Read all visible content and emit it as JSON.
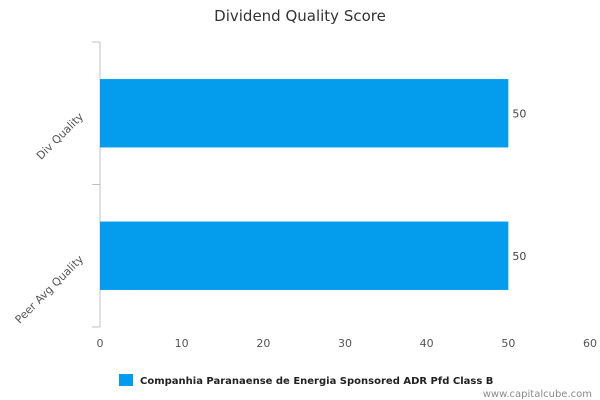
{
  "chart_data": {
    "type": "bar",
    "orientation": "horizontal",
    "title": "Dividend Quality Score",
    "categories": [
      "Div Quality",
      "Peer Avg Quality"
    ],
    "series": [
      {
        "name": "Companhia Paranaense de Energia Sponsored ADR Pfd Class B",
        "values": [
          50,
          50
        ],
        "color": "#049cec"
      }
    ],
    "xlim": [
      0,
      60
    ],
    "xticks": [
      "0",
      "10",
      "20",
      "30",
      "40",
      "50",
      "60"
    ],
    "xlabel": "",
    "ylabel": "",
    "grid": false,
    "legend": "bottom-left"
  },
  "watermark": "www.capitalcube.com"
}
